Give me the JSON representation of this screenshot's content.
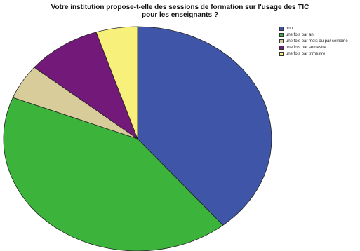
{
  "chart_data": {
    "type": "pie",
    "title_lines": [
      "Votre institution propose-t-elle des sessions de formation sur l'usage des TIC",
      "pour les enseignants ?"
    ],
    "categories": [
      "non",
      "une fois par an",
      "une fois par mois ou par semaine",
      "une fois par semestre",
      "une fois par trimestre"
    ],
    "values": [
      39,
      42,
      5,
      9,
      5
    ],
    "colors": [
      "#3f56a8",
      "#3cb43c",
      "#d8cc9b",
      "#72197a",
      "#f7f07a"
    ],
    "legend_position": "right"
  }
}
